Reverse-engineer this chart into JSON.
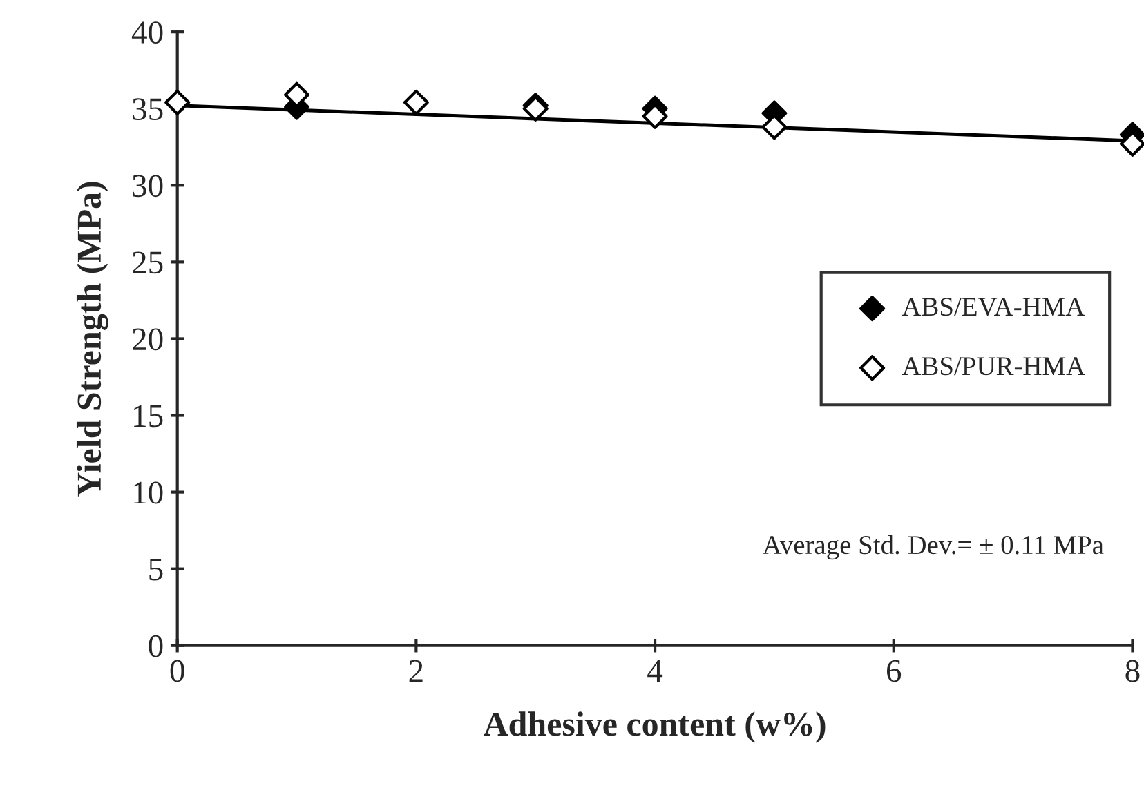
{
  "chart_data": {
    "type": "scatter",
    "xlabel": "Adhesive content (w%)",
    "ylabel": "Yield Strength (MPa)",
    "xlim": [
      0,
      8
    ],
    "xticks": [
      0,
      2,
      4,
      6,
      8
    ],
    "ylim": [
      0,
      40
    ],
    "yticks": [
      0,
      5,
      10,
      15,
      20,
      25,
      30,
      35,
      40
    ],
    "grid": false,
    "legend": "right",
    "annotations": [
      "Average Std. Dev.= ± 0.11 MPa"
    ],
    "series": [
      {
        "name": "ABS/EVA-HMA",
        "color": "#000000",
        "marker": "diamond",
        "x": [
          1,
          3,
          4,
          5,
          8
        ],
        "values": [
          35.1,
          35.2,
          35.0,
          34.7,
          33.3
        ]
      },
      {
        "name": "ABS/PUR-HMA",
        "color": "#ffffff",
        "marker": "diamond",
        "x": [
          0,
          1,
          2,
          3,
          4,
          5,
          8
        ],
        "values": [
          35.4,
          35.9,
          35.4,
          35.0,
          34.5,
          33.8,
          32.7
        ]
      },
      {
        "type": "line",
        "color": "#000000",
        "marker": "none",
        "x": [
          0,
          8
        ],
        "values": [
          35.2,
          32.9
        ]
      }
    ]
  }
}
